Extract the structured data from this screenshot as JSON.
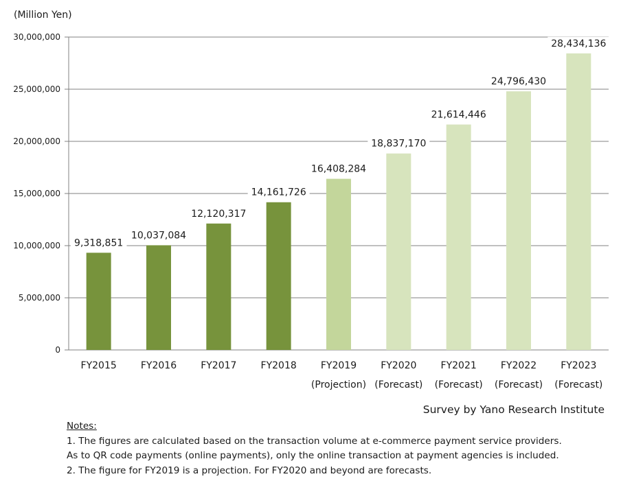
{
  "unit_label": "(Million Yen)",
  "credit": "Survey by Yano Research Institute",
  "notes": {
    "title": "Notes:",
    "lines": [
      "1. The figures are calculated based on the transaction volume at e-commerce payment service providers.",
      "As to QR code payments (online payments), only the online transaction at payment agencies is included.",
      "2.  The figure for FY2019 is a projection. For FY2020 and beyond are forecasts."
    ]
  },
  "chart_data": {
    "type": "bar",
    "categories": [
      "FY2015",
      "FY2016",
      "FY2017",
      "FY2018",
      "FY2019",
      "FY2020",
      "FY2021",
      "FY2022",
      "FY2023"
    ],
    "sublabels": [
      "",
      "",
      "",
      "",
      "(Projection)",
      "(Forecast)",
      "(Forecast)",
      "(Forecast)",
      "(Forecast)"
    ],
    "values": [
      9318851,
      10037084,
      12120317,
      14161726,
      16408284,
      18837170,
      21614446,
      24796430,
      28434136
    ],
    "value_labels": [
      "9,318,851",
      "10,037,084",
      "12,120,317",
      "14,161,726",
      "16,408,284",
      "18,837,170",
      "21,614,446",
      "24,796,430",
      "28,434,136"
    ],
    "ylim": [
      0,
      30000000
    ],
    "yticks": [
      0,
      5000000,
      10000000,
      15000000,
      20000000,
      25000000,
      30000000
    ],
    "ytick_labels": [
      "0",
      "5,000,000",
      "10,000,000",
      "15,000,000",
      "20,000,000",
      "25,000,000",
      "30,000,000"
    ],
    "grid": true,
    "colors": {
      "actual": "#77933c",
      "projection": "#c3d69b",
      "forecast": "#d7e4bd",
      "grid": "#808080"
    }
  }
}
